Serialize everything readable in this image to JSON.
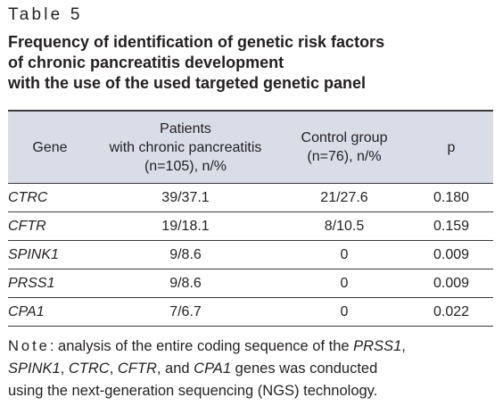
{
  "table_label": "Table 5",
  "title_lines": [
    "Frequency of identification of genetic risk factors",
    "of chronic pancreatitis development",
    "with the use of the used targeted genetic panel"
  ],
  "table": {
    "headers": {
      "gene": "Gene",
      "patients": [
        "Patients",
        "with chronic pancreatitis",
        "(n=105), n/%"
      ],
      "control": [
        "Control group",
        "(n=76), n/%"
      ],
      "p": "p"
    },
    "rows": [
      {
        "gene": "CTRC",
        "patients": "39/37.1",
        "control": "21/27.6",
        "p": "0.180"
      },
      {
        "gene": "CFTR",
        "patients": "19/18.1",
        "control": "8/10.5",
        "p": "0.159"
      },
      {
        "gene": "SPINK1",
        "patients": "9/8.6",
        "control": "0",
        "p": "0.009"
      },
      {
        "gene": "PRSS1",
        "patients": "9/8.6",
        "control": "0",
        "p": "0.009"
      },
      {
        "gene": "CPA1",
        "patients": "7/6.7",
        "control": "0",
        "p": "0.022"
      }
    ]
  },
  "note": {
    "label": "Note",
    "line1_pre": ": analysis of the entire coding sequence of the ",
    "line1_gene": "PRSS1",
    "line1_post": ",",
    "line2_gene1": "SPINK1",
    "line2_sep1": ", ",
    "line2_gene2": "CTRC",
    "line2_sep2": ", ",
    "line2_gene3": "CFTR",
    "line2_sep3": ", and ",
    "line2_gene4": "CPA1",
    "line2_post": " genes was conducted",
    "line3": "using the next-generation sequencing (NGS) technology."
  },
  "colors": {
    "header_bg": "#d8dde8",
    "text": "#231f20",
    "rule": "#3a3a3a"
  }
}
